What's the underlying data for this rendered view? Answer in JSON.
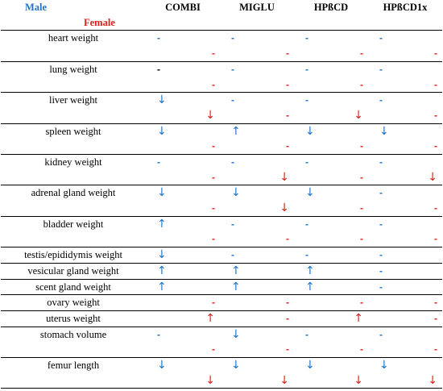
{
  "header": {
    "male_label": "Male",
    "female_label": "Female",
    "columns": [
      "COMBI",
      "MIGLU",
      "HPßCD",
      "HPßCD1x"
    ]
  },
  "colors": {
    "male": "#2474c4",
    "female": "#e0201b",
    "neutral": "#000000"
  },
  "rows": [
    {
      "label": "heart weight",
      "sex": "male",
      "values": [
        "-",
        "-",
        "-",
        "-"
      ]
    },
    {
      "label": "",
      "sex": "female",
      "values": [
        "-",
        "-",
        "-",
        "-"
      ]
    },
    {
      "label": "lung weight",
      "sex": "male",
      "values": [
        "-",
        "-",
        "-",
        "-"
      ],
      "black_first": true
    },
    {
      "label": "",
      "sex": "female",
      "values": [
        "-",
        "-",
        "-",
        "-"
      ]
    },
    {
      "label": "liver weight",
      "sex": "male",
      "values": [
        "↓",
        "-",
        "-",
        "-"
      ]
    },
    {
      "label": "",
      "sex": "female",
      "values": [
        "↓",
        "-",
        "↓",
        "-"
      ]
    },
    {
      "label": "spleen weight",
      "sex": "male",
      "values": [
        "↓",
        "↑",
        "↓",
        "↓"
      ]
    },
    {
      "label": "",
      "sex": "female",
      "values": [
        "-",
        "-",
        "-",
        "-"
      ]
    },
    {
      "label": "kidney weight",
      "sex": "male",
      "values": [
        "-",
        "-",
        "-",
        "-"
      ]
    },
    {
      "label": "",
      "sex": "female",
      "values": [
        "-",
        "↓",
        "-",
        "↓"
      ]
    },
    {
      "label": "adrenal gland weight",
      "sex": "male",
      "values": [
        "↓",
        "↓",
        "↓",
        "-"
      ]
    },
    {
      "label": "",
      "sex": "female",
      "values": [
        "-",
        "↓",
        "-",
        "-"
      ]
    },
    {
      "label": "bladder weight",
      "sex": "male",
      "values": [
        "↑",
        "-",
        "-",
        "-"
      ]
    },
    {
      "label": "",
      "sex": "female",
      "values": [
        "-",
        "-",
        "-",
        "-"
      ]
    },
    {
      "label": "testis/epididymis weight",
      "sex": "male",
      "values": [
        "↓",
        "-",
        "-",
        "-"
      ]
    },
    {
      "label": "vesicular gland weight",
      "sex": "male",
      "values": [
        "↑",
        "↑",
        "↑",
        "-"
      ]
    },
    {
      "label": "scent gland weight",
      "sex": "male",
      "values": [
        "↑",
        "↑",
        "↑",
        "-"
      ]
    },
    {
      "label": "ovary weight",
      "sex": "female",
      "values": [
        "-",
        "-",
        "-",
        "-"
      ]
    },
    {
      "label": "uterus weight",
      "sex": "female",
      "values": [
        "↑",
        "-",
        "↑",
        "-"
      ]
    },
    {
      "label": "stomach volume",
      "sex": "male",
      "values": [
        "-",
        "↓",
        "-",
        "-"
      ]
    },
    {
      "label": "",
      "sex": "female",
      "values": [
        "-",
        "-",
        "-",
        "-"
      ]
    },
    {
      "label": "femur length",
      "sex": "male",
      "values": [
        "↓",
        "↓",
        "↓",
        "↓"
      ]
    },
    {
      "label": "",
      "sex": "female",
      "values": [
        "↓",
        "↓",
        "↓",
        "↓"
      ]
    }
  ]
}
